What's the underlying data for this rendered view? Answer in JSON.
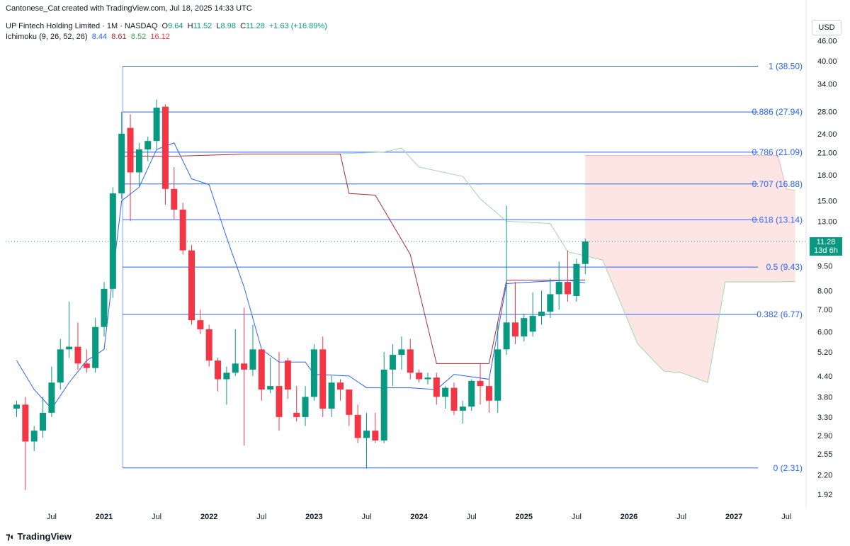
{
  "header": {
    "credit": "Cantonese_Cat created with TradingView.com, Jul 18, 2025 14:33 UTC",
    "symbol": "UP Fintech Holding Limited · 1M · NASDAQ",
    "o_label": "O",
    "o_value": "9.64",
    "h_label": "H",
    "h_value": "11.52",
    "l_label": "L",
    "l_value": "8.98",
    "c_label": "C",
    "c_value": "11.28",
    "change": "+1.63 (+16.89%)",
    "indicator": "Ichimoku (9, 26, 52, 26)",
    "ind_values": [
      "8.44",
      "8.61",
      "8.52",
      "16.12"
    ]
  },
  "currency": "USD",
  "last_price": {
    "value": "11.28",
    "countdown": "13d 6h"
  },
  "branding": "TradingView",
  "colors": {
    "up": "#089981",
    "down": "#f23645",
    "fib": "#2962ff",
    "tenkan": "#2962ff",
    "kijun": "#b22833",
    "lagging": "#a5d6a7",
    "cloud": "#fbe0dd"
  },
  "chart_data": {
    "type": "candlestick",
    "interval": "1M",
    "y_scale": "log",
    "y_ticks": [
      "46.00",
      "40.00",
      "34.00",
      "28.00",
      "24.00",
      "21.00",
      "18.00",
      "15.00",
      "13.00",
      "11.00",
      "9.50",
      "8.00",
      "7.00",
      "6.00",
      "5.20",
      "4.40",
      "3.80",
      "3.30",
      "2.90",
      "2.55",
      "2.20",
      "1.92"
    ],
    "x_ticks": [
      {
        "date": "2020-07",
        "label": "Jul"
      },
      {
        "date": "2021-01",
        "label": "2021"
      },
      {
        "date": "2021-07",
        "label": "Jul"
      },
      {
        "date": "2022-01",
        "label": "2022"
      },
      {
        "date": "2022-07",
        "label": "Jul"
      },
      {
        "date": "2023-01",
        "label": "2023"
      },
      {
        "date": "2023-07",
        "label": "Jul"
      },
      {
        "date": "2024-01",
        "label": "2024"
      },
      {
        "date": "2024-07",
        "label": "Jul"
      },
      {
        "date": "2025-01",
        "label": "2025"
      },
      {
        "date": "2025-07",
        "label": "Jul"
      },
      {
        "date": "2026-01",
        "label": "2026"
      },
      {
        "date": "2026-07",
        "label": "Jul"
      },
      {
        "date": "2027-01",
        "label": "2027"
      },
      {
        "date": "2027-07",
        "label": "Jul"
      }
    ],
    "candles": [
      {
        "t": "2020-03",
        "o": 3.5,
        "h": 3.7,
        "l": 3.3,
        "c": 3.6
      },
      {
        "t": "2020-04",
        "o": 3.6,
        "h": 3.8,
        "l": 1.98,
        "c": 2.78
      },
      {
        "t": "2020-05",
        "o": 2.78,
        "h": 3.1,
        "l": 2.6,
        "c": 3.0
      },
      {
        "t": "2020-06",
        "o": 3.0,
        "h": 3.8,
        "l": 2.85,
        "c": 3.4
      },
      {
        "t": "2020-07",
        "o": 3.4,
        "h": 4.7,
        "l": 3.3,
        "c": 4.2
      },
      {
        "t": "2020-08",
        "o": 4.2,
        "h": 5.7,
        "l": 4.0,
        "c": 5.3
      },
      {
        "t": "2020-09",
        "o": 5.3,
        "h": 7.4,
        "l": 5.0,
        "c": 5.4
      },
      {
        "t": "2020-10",
        "o": 5.4,
        "h": 6.4,
        "l": 4.6,
        "c": 4.8
      },
      {
        "t": "2020-11",
        "o": 4.8,
        "h": 5.3,
        "l": 4.5,
        "c": 4.65
      },
      {
        "t": "2020-12",
        "o": 4.65,
        "h": 6.6,
        "l": 4.5,
        "c": 6.2
      },
      {
        "t": "2021-01",
        "o": 6.2,
        "h": 8.5,
        "l": 5.8,
        "c": 8.1
      },
      {
        "t": "2021-02",
        "o": 8.1,
        "h": 16.5,
        "l": 7.6,
        "c": 15.8
      },
      {
        "t": "2021-03",
        "o": 15.8,
        "h": 28.0,
        "l": 15.2,
        "c": 24.0
      },
      {
        "t": "2021-04",
        "o": 25.0,
        "h": 27.5,
        "l": 13.0,
        "c": 18.3
      },
      {
        "t": "2021-05",
        "o": 18.3,
        "h": 22.5,
        "l": 16.6,
        "c": 21.5
      },
      {
        "t": "2021-06",
        "o": 21.5,
        "h": 23.5,
        "l": 19.8,
        "c": 22.8
      },
      {
        "t": "2021-07",
        "o": 22.8,
        "h": 30.5,
        "l": 21.5,
        "c": 28.8
      },
      {
        "t": "2021-08",
        "o": 29.0,
        "h": 29.5,
        "l": 14.6,
        "c": 16.3
      },
      {
        "t": "2021-09",
        "o": 16.3,
        "h": 19.0,
        "l": 13.2,
        "c": 14.1
      },
      {
        "t": "2021-10",
        "o": 14.1,
        "h": 14.8,
        "l": 10.3,
        "c": 10.6
      },
      {
        "t": "2021-11",
        "o": 10.6,
        "h": 11.0,
        "l": 6.3,
        "c": 6.5
      },
      {
        "t": "2021-12",
        "o": 6.5,
        "h": 7.0,
        "l": 5.9,
        "c": 6.1
      },
      {
        "t": "2022-01",
        "o": 6.1,
        "h": 6.3,
        "l": 4.7,
        "c": 4.9
      },
      {
        "t": "2022-02",
        "o": 4.9,
        "h": 5.0,
        "l": 3.95,
        "c": 4.3
      },
      {
        "t": "2022-03",
        "o": 4.3,
        "h": 4.7,
        "l": 3.6,
        "c": 4.5
      },
      {
        "t": "2022-04",
        "o": 4.5,
        "h": 6.1,
        "l": 4.4,
        "c": 4.8
      },
      {
        "t": "2022-05",
        "o": 4.8,
        "h": 7.1,
        "l": 2.7,
        "c": 4.6
      },
      {
        "t": "2022-06",
        "o": 4.6,
        "h": 6.3,
        "l": 4.4,
        "c": 5.3
      },
      {
        "t": "2022-07",
        "o": 5.3,
        "h": 5.3,
        "l": 3.7,
        "c": 4.0
      },
      {
        "t": "2022-08",
        "o": 4.0,
        "h": 5.0,
        "l": 3.9,
        "c": 4.1
      },
      {
        "t": "2022-09",
        "o": 4.1,
        "h": 5.2,
        "l": 3.0,
        "c": 3.3
      },
      {
        "t": "2022-10",
        "o": 4.9,
        "h": 5.0,
        "l": 3.75,
        "c": 4.0
      },
      {
        "t": "2022-11",
        "o": 3.4,
        "h": 4.1,
        "l": 3.2,
        "c": 3.3
      },
      {
        "t": "2022-12",
        "o": 3.3,
        "h": 4.1,
        "l": 3.1,
        "c": 3.8
      },
      {
        "t": "2023-01",
        "o": 3.8,
        "h": 5.5,
        "l": 3.7,
        "c": 5.3
      },
      {
        "t": "2023-02",
        "o": 5.3,
        "h": 5.8,
        "l": 3.3,
        "c": 3.5
      },
      {
        "t": "2023-03",
        "o": 3.5,
        "h": 4.4,
        "l": 3.3,
        "c": 4.2
      },
      {
        "t": "2023-04",
        "o": 4.2,
        "h": 4.3,
        "l": 3.7,
        "c": 4.0
      },
      {
        "t": "2023-05",
        "o": 4.0,
        "h": 4.0,
        "l": 3.1,
        "c": 3.35
      },
      {
        "t": "2023-06",
        "o": 3.35,
        "h": 3.6,
        "l": 2.75,
        "c": 2.85
      },
      {
        "t": "2023-07",
        "o": 2.85,
        "h": 3.4,
        "l": 2.3,
        "c": 3.0
      },
      {
        "t": "2023-08",
        "o": 3.0,
        "h": 3.4,
        "l": 2.75,
        "c": 2.8
      },
      {
        "t": "2023-09",
        "o": 2.8,
        "h": 5.2,
        "l": 2.75,
        "c": 4.6
      },
      {
        "t": "2023-10",
        "o": 4.6,
        "h": 5.5,
        "l": 4.1,
        "c": 5.1
      },
      {
        "t": "2023-11",
        "o": 5.1,
        "h": 5.8,
        "l": 4.6,
        "c": 5.3
      },
      {
        "t": "2023-12",
        "o": 5.3,
        "h": 5.7,
        "l": 4.3,
        "c": 4.5
      },
      {
        "t": "2024-01",
        "o": 4.5,
        "h": 4.6,
        "l": 4.2,
        "c": 4.3
      },
      {
        "t": "2024-02",
        "o": 4.3,
        "h": 4.5,
        "l": 4.15,
        "c": 4.35
      },
      {
        "t": "2024-03",
        "o": 4.35,
        "h": 4.5,
        "l": 3.6,
        "c": 3.8
      },
      {
        "t": "2024-04",
        "o": 3.8,
        "h": 4.1,
        "l": 3.5,
        "c": 4.05
      },
      {
        "t": "2024-05",
        "o": 4.05,
        "h": 4.2,
        "l": 3.35,
        "c": 3.45
      },
      {
        "t": "2024-06",
        "o": 3.45,
        "h": 3.7,
        "l": 3.15,
        "c": 3.55
      },
      {
        "t": "2024-07",
        "o": 3.55,
        "h": 4.3,
        "l": 3.45,
        "c": 4.25
      },
      {
        "t": "2024-08",
        "o": 4.25,
        "h": 4.8,
        "l": 3.6,
        "c": 4.1
      },
      {
        "t": "2024-09",
        "o": 4.1,
        "h": 4.3,
        "l": 3.4,
        "c": 3.7
      },
      {
        "t": "2024-10",
        "o": 3.7,
        "h": 6.4,
        "l": 3.4,
        "c": 5.3
      },
      {
        "t": "2024-11",
        "o": 5.3,
        "h": 14.5,
        "l": 5.1,
        "c": 6.4
      },
      {
        "t": "2024-12",
        "o": 6.4,
        "h": 8.5,
        "l": 5.5,
        "c": 5.8
      },
      {
        "t": "2025-01",
        "o": 5.8,
        "h": 6.8,
        "l": 5.6,
        "c": 6.6
      },
      {
        "t": "2025-02",
        "o": 6.0,
        "h": 7.9,
        "l": 5.8,
        "c": 6.7
      },
      {
        "t": "2025-03",
        "o": 6.7,
        "h": 8.0,
        "l": 6.3,
        "c": 6.9
      },
      {
        "t": "2025-04",
        "o": 6.9,
        "h": 8.7,
        "l": 6.6,
        "c": 7.8
      },
      {
        "t": "2025-05",
        "o": 7.8,
        "h": 9.8,
        "l": 7.0,
        "c": 8.5
      },
      {
        "t": "2025-06",
        "o": 8.5,
        "h": 10.6,
        "l": 7.4,
        "c": 7.8
      },
      {
        "t": "2025-07",
        "o": 7.7,
        "h": 10.0,
        "l": 7.4,
        "c": 9.64
      },
      {
        "t": "2025-08",
        "o": 9.64,
        "h": 11.52,
        "l": 8.98,
        "c": 11.28
      }
    ],
    "fib_levels": [
      {
        "ratio": "1",
        "value": 38.5,
        "label": "1 (38.50)"
      },
      {
        "ratio": "0.886",
        "value": 27.94,
        "label": "0.886 (27.94)"
      },
      {
        "ratio": "0.786",
        "value": 21.09,
        "label": "0.786 (21.09)"
      },
      {
        "ratio": "0.707",
        "value": 16.88,
        "label": "0.707 (16.88)"
      },
      {
        "ratio": "0.618",
        "value": 13.14,
        "label": "0.618 (13.14)"
      },
      {
        "ratio": "0.5",
        "value": 9.43,
        "label": "0.5 (9.43)"
      },
      {
        "ratio": "0.382",
        "value": 6.77,
        "label": "0.382 (6.77)"
      },
      {
        "ratio": "0",
        "value": 2.31,
        "label": "0 (2.31)"
      }
    ],
    "ichimoku": {
      "params": [
        9,
        26,
        52,
        26
      ],
      "tenkan": [
        {
          "t": "2020-03",
          "v": 4.9
        },
        {
          "t": "2020-05",
          "v": 4.0
        },
        {
          "t": "2020-07",
          "v": 3.5
        },
        {
          "t": "2020-09",
          "v": 4.2
        },
        {
          "t": "2020-11",
          "v": 4.9
        },
        {
          "t": "2021-01",
          "v": 5.3
        },
        {
          "t": "2021-03",
          "v": 15.0
        },
        {
          "t": "2021-05",
          "v": 16.5
        },
        {
          "t": "2021-07",
          "v": 21.5
        },
        {
          "t": "2021-09",
          "v": 22.5
        },
        {
          "t": "2021-11",
          "v": 17.5
        },
        {
          "t": "2022-01",
          "v": 16.8
        },
        {
          "t": "2022-03",
          "v": 11.6
        },
        {
          "t": "2022-05",
          "v": 8.2
        },
        {
          "t": "2022-07",
          "v": 5.3
        },
        {
          "t": "2022-09",
          "v": 4.85
        },
        {
          "t": "2022-12",
          "v": 4.85
        },
        {
          "t": "2023-01",
          "v": 4.45
        },
        {
          "t": "2023-05",
          "v": 4.4
        },
        {
          "t": "2023-07",
          "v": 4.05
        },
        {
          "t": "2023-12",
          "v": 4.05
        },
        {
          "t": "2024-03",
          "v": 4.0
        },
        {
          "t": "2024-05",
          "v": 4.45
        },
        {
          "t": "2024-09",
          "v": 4.3
        },
        {
          "t": "2024-11",
          "v": 8.4
        },
        {
          "t": "2025-02",
          "v": 8.5
        },
        {
          "t": "2025-06",
          "v": 8.6
        },
        {
          "t": "2025-08",
          "v": 8.44
        }
      ],
      "kijun": [
        {
          "t": "2021-03",
          "v": 20.5
        },
        {
          "t": "2021-09",
          "v": 20.5
        },
        {
          "t": "2022-05",
          "v": 20.8
        },
        {
          "t": "2023-04",
          "v": 20.8
        },
        {
          "t": "2023-05",
          "v": 15.8
        },
        {
          "t": "2023-08",
          "v": 15.6
        },
        {
          "t": "2023-12",
          "v": 10.3
        },
        {
          "t": "2024-03",
          "v": 4.8
        },
        {
          "t": "2024-09",
          "v": 4.8
        },
        {
          "t": "2024-11",
          "v": 8.6
        },
        {
          "t": "2025-05",
          "v": 8.6
        },
        {
          "t": "2025-08",
          "v": 8.61
        }
      ],
      "lagging": [
        {
          "t": "2023-03",
          "v": 20.8
        },
        {
          "t": "2023-09",
          "v": 21.1
        },
        {
          "t": "2023-11",
          "v": 21.7
        },
        {
          "t": "2024-01",
          "v": 19.0
        },
        {
          "t": "2024-06",
          "v": 17.8
        },
        {
          "t": "2024-08",
          "v": 15.2
        },
        {
          "t": "2024-11",
          "v": 13.0
        },
        {
          "t": "2025-04",
          "v": 12.8
        },
        {
          "t": "2025-06",
          "v": 10.5
        },
        {
          "t": "2025-08",
          "v": 10.2
        },
        {
          "t": "2025-10",
          "v": 9.9
        },
        {
          "t": "2026-02",
          "v": 5.5
        },
        {
          "t": "2026-05",
          "v": 4.55
        },
        {
          "t": "2026-07",
          "v": 4.5
        },
        {
          "t": "2026-10",
          "v": 4.2
        },
        {
          "t": "2026-12",
          "v": 8.5
        },
        {
          "t": "2027-06",
          "v": 8.5
        },
        {
          "t": "2027-08",
          "v": 8.52
        }
      ],
      "span_b_top": [
        {
          "t": "2025-08",
          "v": 20.6
        },
        {
          "t": "2026-05",
          "v": 20.6
        },
        {
          "t": "2027-06",
          "v": 20.6
        },
        {
          "t": "2027-07",
          "v": 16.3
        },
        {
          "t": "2027-08",
          "v": 16.12
        }
      ]
    }
  }
}
